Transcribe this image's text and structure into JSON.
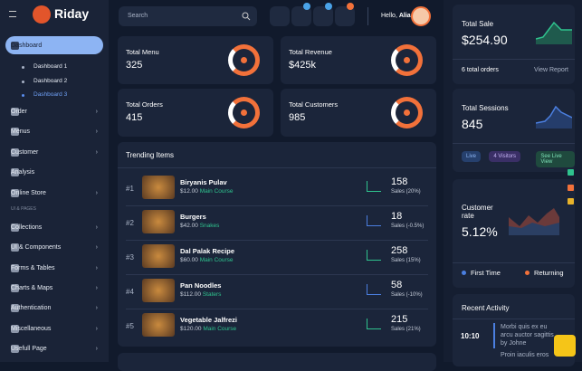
{
  "brand": "Riday",
  "menu": [
    {
      "label": "Dashboard",
      "children": [
        "Dashboard 1",
        "Dashboard 2",
        "Dashboard 3"
      ]
    },
    {
      "label": "Order"
    },
    {
      "label": "Menus"
    },
    {
      "label": "Customer"
    },
    {
      "label": "Analysis"
    },
    {
      "label": "Online Store"
    }
  ],
  "section_label": "UI & PAGES",
  "pages_menu": [
    "Collections",
    "UI & Components",
    "Forms & Tables",
    "Charts & Maps",
    "Authentication",
    "Miscellaneous",
    "Usefull Page"
  ],
  "search_placeholder": "Search",
  "greeting": {
    "prefix": "Hello,",
    "name": "Alia"
  },
  "stats": [
    {
      "label": "Total Menu",
      "value": "325"
    },
    {
      "label": "Total Revenue",
      "value": "$425k"
    },
    {
      "label": "Total Orders",
      "value": "415"
    },
    {
      "label": "Total Customers",
      "value": "985"
    }
  ],
  "trending": {
    "title": "Trending Items",
    "items": [
      {
        "rank": "#1",
        "name": "Biryanis Pulav",
        "price": "$12.00",
        "category": "Main Course",
        "sales": "158",
        "change": "Sales (20%)"
      },
      {
        "rank": "#2",
        "name": "Burgers",
        "price": "$42.00",
        "category": "Snakes",
        "sales": "18",
        "change": "Sales (-0.5%)"
      },
      {
        "rank": "#3",
        "name": "Dal Palak Recipe",
        "price": "$60.00",
        "category": "Main Course",
        "sales": "258",
        "change": "Sales (15%)"
      },
      {
        "rank": "#4",
        "name": "Pan Noodles",
        "price": "$112.00",
        "category": "Staters",
        "sales": "58",
        "change": "Sales (-10%)"
      },
      {
        "rank": "#5",
        "name": "Vegetable Jalfrezi",
        "price": "$120.00",
        "category": "Main Course",
        "sales": "215",
        "change": "Sales (21%)"
      }
    ]
  },
  "sale": {
    "title": "Total Sale",
    "value": "$254.90",
    "orders": "6 total orders",
    "link": "View Report"
  },
  "sessions": {
    "title": "Total Sessions",
    "value": "845",
    "tags": [
      "Live",
      "4 Visitors",
      "See Live View"
    ]
  },
  "customer_rate": {
    "title": "Customer rate",
    "value": "5.12%",
    "legend": [
      "First Time",
      "Returning"
    ]
  },
  "activity": {
    "title": "Recent Activity",
    "time": "10:10",
    "text": "Morbi quis ex eu arcu auctor sagittis",
    "author": "by Johne",
    "next": "Proin iaculis eros"
  }
}
